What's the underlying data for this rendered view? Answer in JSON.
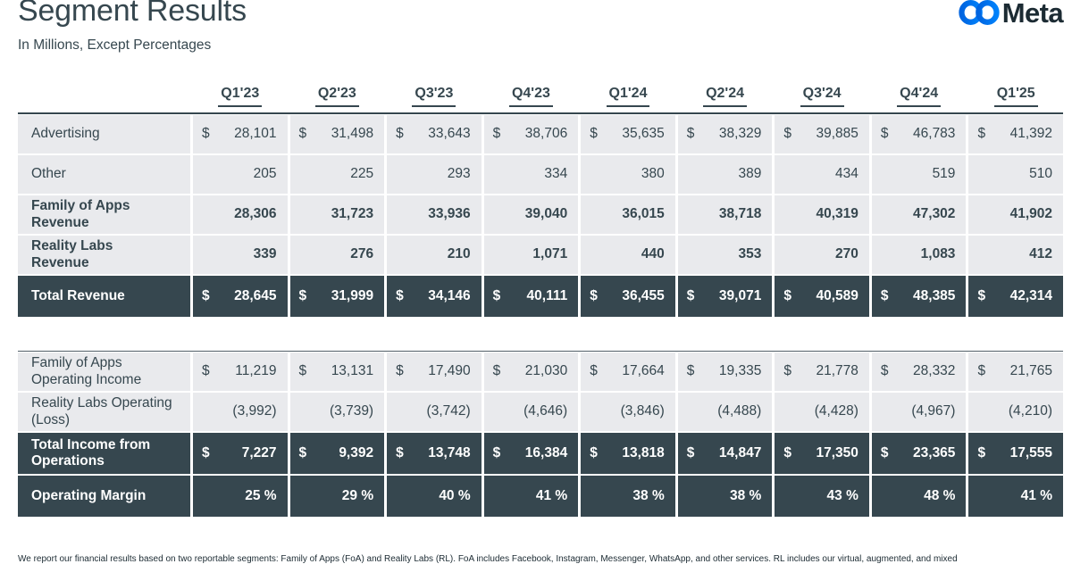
{
  "header": {
    "title": "Segment Results",
    "subtitle": "In Millions, Except Percentages",
    "logo": {
      "wordmark": "Meta",
      "icon": "meta-infinity-icon"
    }
  },
  "currency_symbol": "$",
  "columns": [
    "Q1'23",
    "Q2'23",
    "Q3'23",
    "Q4'23",
    "Q1'24",
    "Q2'24",
    "Q3'24",
    "Q4'24",
    "Q1'25"
  ],
  "revenue_table": {
    "rows": [
      {
        "label": "Advertising",
        "dollar": true,
        "bold": false,
        "dark": false,
        "values": [
          "28,101",
          "31,498",
          "33,643",
          "38,706",
          "35,635",
          "38,329",
          "39,885",
          "46,783",
          "41,392"
        ]
      },
      {
        "label": "Other",
        "dollar": false,
        "bold": false,
        "dark": false,
        "values": [
          "205",
          "225",
          "293",
          "334",
          "380",
          "389",
          "434",
          "519",
          "510"
        ]
      },
      {
        "label": "Family of Apps Revenue",
        "dollar": false,
        "bold": true,
        "dark": false,
        "values": [
          "28,306",
          "31,723",
          "33,936",
          "39,040",
          "36,015",
          "38,718",
          "40,319",
          "47,302",
          "41,902"
        ]
      },
      {
        "label": "Reality Labs Revenue",
        "dollar": false,
        "bold": true,
        "dark": false,
        "values": [
          "339",
          "276",
          "210",
          "1,071",
          "440",
          "353",
          "270",
          "1,083",
          "412"
        ]
      },
      {
        "label": "Total Revenue",
        "dollar": true,
        "bold": true,
        "dark": true,
        "values": [
          "28,645",
          "31,999",
          "34,146",
          "40,111",
          "36,455",
          "39,071",
          "40,589",
          "48,385",
          "42,314"
        ]
      }
    ]
  },
  "income_table": {
    "rows": [
      {
        "label": "Family of Apps Operating Income",
        "dollar": true,
        "bold": false,
        "dark": false,
        "values": [
          "11,219",
          "13,131",
          "17,490",
          "21,030",
          "17,664",
          "19,335",
          "21,778",
          "28,332",
          "21,765"
        ]
      },
      {
        "label": "Reality Labs Operating (Loss)",
        "dollar": false,
        "bold": false,
        "dark": false,
        "values": [
          "(3,992)",
          "(3,739)",
          "(3,742)",
          "(4,646)",
          "(3,846)",
          "(4,488)",
          "(4,428)",
          "(4,967)",
          "(4,210)"
        ]
      },
      {
        "label": "Total Income from Operations",
        "dollar": true,
        "bold": true,
        "dark": true,
        "values": [
          "7,227",
          "9,392",
          "13,748",
          "16,384",
          "13,818",
          "14,847",
          "17,350",
          "23,365",
          "17,555"
        ]
      },
      {
        "label": "Operating Margin",
        "dollar": false,
        "bold": true,
        "dark": true,
        "values": [
          "25 %",
          "29 %",
          "40 %",
          "41 %",
          "38 %",
          "38 %",
          "43 %",
          "48 %",
          "41 %"
        ]
      }
    ]
  },
  "footnote": "We report our financial results based on two reportable segments: Family of Apps (FoA) and Reality Labs (RL). FoA includes Facebook, Instagram, Messenger, WhatsApp, and other services. RL includes our virtual, augmented, and mixed",
  "colors": {
    "dark_row_bg": "#36474F",
    "light_row_bg": "#E9EAED",
    "text": "#36474F",
    "logo_blue_start": "#0064E0",
    "logo_blue_end": "#0082FB",
    "wordmark": "#1C2B33"
  }
}
